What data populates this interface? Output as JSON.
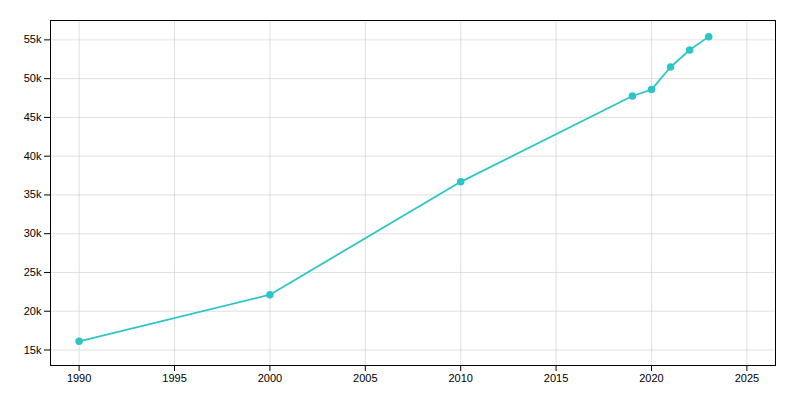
{
  "chart_data": {
    "type": "line",
    "x": [
      1990,
      2000,
      2010,
      2019,
      2020,
      2021,
      2022,
      2023
    ],
    "values": [
      16113,
      22130,
      36690,
      47760,
      48592,
      51500,
      53700,
      55420
    ],
    "color": "#2DC5C5",
    "marker": "o",
    "xlim": [
      1988.5,
      2026.5
    ],
    "xticks": [
      1990,
      1995,
      2000,
      2005,
      2010,
      2015,
      2020,
      2025
    ],
    "ylim": [
      13000,
      57500
    ],
    "yticks": [
      {
        "value": 15000,
        "label": "15k"
      },
      {
        "value": 20000,
        "label": "20k"
      },
      {
        "value": 25000,
        "label": "25k"
      },
      {
        "value": 30000,
        "label": "30k"
      },
      {
        "value": 35000,
        "label": "35k"
      },
      {
        "value": 40000,
        "label": "40k"
      },
      {
        "value": 45000,
        "label": "45k"
      },
      {
        "value": 50000,
        "label": "50k"
      },
      {
        "value": 55000,
        "label": "55k"
      }
    ],
    "grid": true
  }
}
